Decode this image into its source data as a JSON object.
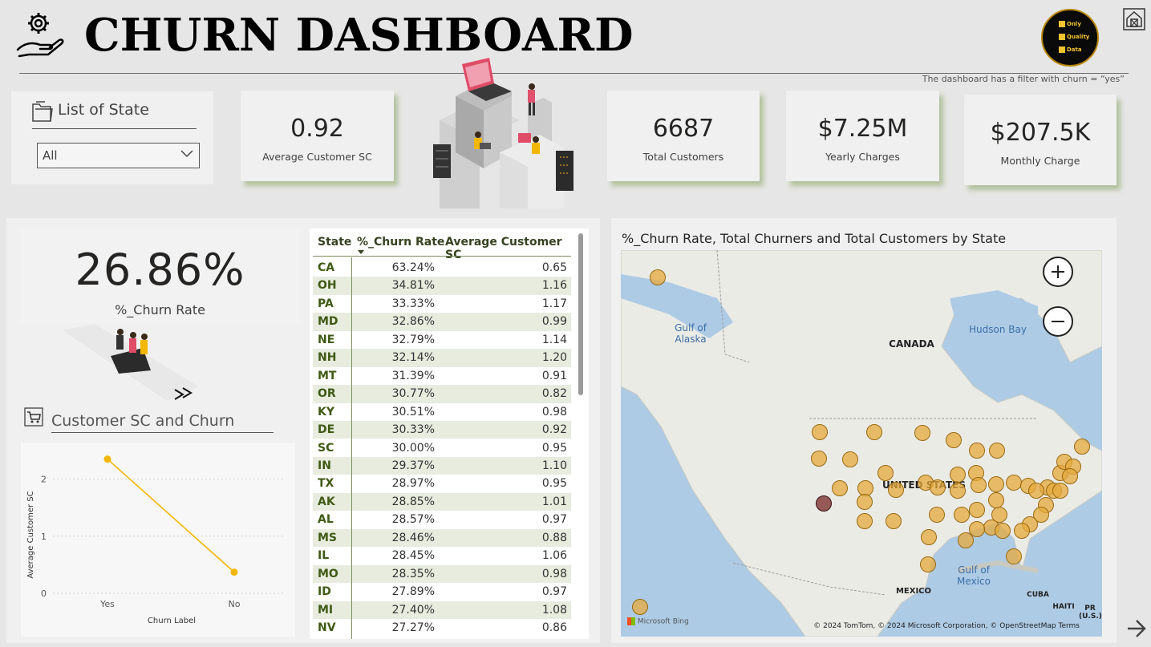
{
  "header": {
    "title": "CHURN DASHBOARD",
    "filter_note": "The dashboard has a filter with churn = “yes”",
    "logo_lines": [
      "Only",
      "Quality",
      "Data"
    ]
  },
  "state_filter": {
    "label": "List of State",
    "selected": "All"
  },
  "kpis": {
    "avg_sc": {
      "value": "0.92",
      "label": "Average Customer SC"
    },
    "total_customers": {
      "value": "6687",
      "label": "Total Customers"
    },
    "yearly": {
      "value": "$7.25M",
      "label": "Yearly Charges"
    },
    "monthly": {
      "value": "$207.5K",
      "label": "Monthly Charge"
    }
  },
  "churn_rate": {
    "value": "26.86%",
    "label": "%_Churn Rate"
  },
  "sc_chart_title": "Customer SC and Churn",
  "table": {
    "headers": [
      "State",
      "%_Churn Rate",
      "Average Customer SC"
    ],
    "rows": [
      [
        "CA",
        "63.24%",
        "0.65"
      ],
      [
        "OH",
        "34.81%",
        "1.16"
      ],
      [
        "PA",
        "33.33%",
        "1.17"
      ],
      [
        "MD",
        "32.86%",
        "0.99"
      ],
      [
        "NE",
        "32.79%",
        "1.14"
      ],
      [
        "NH",
        "32.14%",
        "1.20"
      ],
      [
        "MT",
        "31.39%",
        "0.91"
      ],
      [
        "OR",
        "30.77%",
        "0.82"
      ],
      [
        "KY",
        "30.51%",
        "0.98"
      ],
      [
        "DE",
        "30.33%",
        "0.92"
      ],
      [
        "SC",
        "30.00%",
        "0.95"
      ],
      [
        "IN",
        "29.37%",
        "1.10"
      ],
      [
        "TX",
        "28.97%",
        "0.95"
      ],
      [
        "AK",
        "28.85%",
        "1.01"
      ],
      [
        "AL",
        "28.57%",
        "0.97"
      ],
      [
        "MS",
        "28.46%",
        "0.88"
      ],
      [
        "IL",
        "28.45%",
        "1.06"
      ],
      [
        "MO",
        "28.35%",
        "0.98"
      ],
      [
        "ID",
        "27.89%",
        "0.97"
      ],
      [
        "MI",
        "27.40%",
        "1.08"
      ],
      [
        "NV",
        "27.27%",
        "0.86"
      ]
    ]
  },
  "map": {
    "title": "%_Churn Rate, Total Churners and Total Customers by State",
    "labels": {
      "canada": "CANADA",
      "us": "UNITED STATES",
      "mexico": "MEXICO",
      "gulf_alaska": "Gulf of Alaska",
      "hudson": "Hudson Bay",
      "gulf_mexico": "Gulf of Mexico",
      "cuba": "CUBA",
      "haiti": "HAITI",
      "pr": "PR (U.S.)"
    },
    "credit": "© 2024 TomTom, © 2024 Microsoft Corporation, © OpenStreetMap  Terms",
    "bing": "Microsoft Bing"
  },
  "chart_data": {
    "type": "line",
    "categories": [
      "Yes",
      "No"
    ],
    "series": [
      {
        "values": [
          2.35,
          0.37
        ]
      }
    ],
    "xlabel": "Churn Label",
    "ylabel": "Average Customer SC",
    "yticks": [
      "0",
      "1",
      "2"
    ],
    "ylim": [
      0,
      2.5
    ],
    "grid": true,
    "color": "#f2b705"
  }
}
